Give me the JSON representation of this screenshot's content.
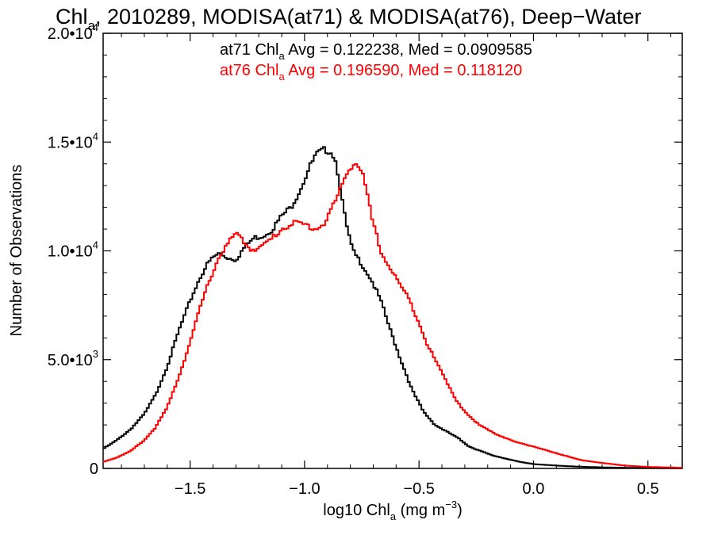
{
  "chart_data": {
    "type": "line",
    "title_prefix": "Chl",
    "title_sub": "a",
    "title_rest": ", 2010289, MODISA(at71) & MODISA(at76), Deep−Water",
    "xlabel_prefix": "log10 Chl",
    "xlabel_sub": "a",
    "xlabel_unit": " (mg m",
    "xlabel_sup": "−3",
    "xlabel_close": ")",
    "ylabel": "Number of Observations",
    "xlim": [
      -1.88,
      0.65
    ],
    "ylim": [
      0,
      20000
    ],
    "x_ticks": [
      -1.5,
      -1.0,
      -0.5,
      0.0,
      0.5
    ],
    "x_tick_labels": [
      "−1.5",
      "−1.0",
      "−0.5",
      "0.0",
      "0.5"
    ],
    "y_ticks": [
      0,
      5000,
      10000,
      15000,
      20000
    ],
    "y_tick_labels": [
      {
        "mant": "0",
        "exp": ""
      },
      {
        "mant": "5.0•10",
        "exp": "3"
      },
      {
        "mant": "1.0•10",
        "exp": "4"
      },
      {
        "mant": "1.5•10",
        "exp": "4"
      },
      {
        "mant": "2.0•10",
        "exp": "4"
      }
    ],
    "grid": false,
    "annotations": [
      {
        "pre": "at71 Chl",
        "sub": "a",
        "post": " Avg = 0.122238, Med = 0.0909585",
        "color": "#000000"
      },
      {
        "pre": "at76 Chl",
        "sub": "a",
        "post": " Avg = 0.196590, Med = 0.118120",
        "color": "#ff0000"
      }
    ],
    "series": [
      {
        "color": "#000000",
        "x": [
          -1.88,
          -1.82,
          -1.76,
          -1.7,
          -1.65,
          -1.6,
          -1.55,
          -1.5,
          -1.46,
          -1.43,
          -1.4,
          -1.37,
          -1.34,
          -1.3,
          -1.26,
          -1.22,
          -1.18,
          -1.14,
          -1.1,
          -1.06,
          -1.02,
          -0.98,
          -0.95,
          -0.92,
          -0.9,
          -0.88,
          -0.86,
          -0.84,
          -0.82,
          -0.79,
          -0.75,
          -0.71,
          -0.67,
          -0.63,
          -0.58,
          -0.53,
          -0.48,
          -0.43,
          -0.38,
          -0.33,
          -0.28,
          -0.23,
          -0.18,
          -0.12,
          -0.06,
          0.0,
          0.1,
          0.2,
          0.3,
          0.4,
          0.5,
          0.65
        ],
        "y": [
          900,
          1300,
          1800,
          2500,
          3400,
          4700,
          6300,
          7700,
          8700,
          9300,
          9700,
          9900,
          9700,
          9600,
          10200,
          10600,
          10700,
          11000,
          11600,
          12000,
          12800,
          13800,
          14400,
          14600,
          14650,
          14550,
          14000,
          12600,
          11300,
          10000,
          9400,
          8700,
          7800,
          6500,
          5000,
          3600,
          2600,
          2000,
          1700,
          1400,
          1000,
          800,
          600,
          450,
          300,
          200,
          130,
          80,
          50,
          30,
          20,
          10
        ]
      },
      {
        "color": "#ff0000",
        "x": [
          -1.88,
          -1.82,
          -1.76,
          -1.7,
          -1.65,
          -1.6,
          -1.55,
          -1.5,
          -1.45,
          -1.41,
          -1.37,
          -1.33,
          -1.3,
          -1.27,
          -1.24,
          -1.2,
          -1.15,
          -1.1,
          -1.05,
          -1.0,
          -0.95,
          -0.91,
          -0.88,
          -0.85,
          -0.82,
          -0.79,
          -0.77,
          -0.75,
          -0.73,
          -0.7,
          -0.66,
          -0.62,
          -0.58,
          -0.54,
          -0.5,
          -0.46,
          -0.42,
          -0.38,
          -0.34,
          -0.3,
          -0.25,
          -0.2,
          -0.15,
          -0.1,
          -0.05,
          0.0,
          0.05,
          0.1,
          0.15,
          0.2,
          0.3,
          0.4,
          0.5,
          0.65
        ],
        "y": [
          300,
          500,
          800,
          1300,
          1900,
          2800,
          4200,
          5800,
          7600,
          8800,
          9800,
          10400,
          10800,
          10500,
          10100,
          10100,
          10500,
          11000,
          11300,
          11200,
          11000,
          11300,
          12000,
          12600,
          13500,
          14000,
          14000,
          13700,
          12700,
          11200,
          9800,
          9100,
          8400,
          7700,
          6700,
          5600,
          4800,
          4000,
          3200,
          2600,
          2100,
          1800,
          1500,
          1300,
          1150,
          1000,
          850,
          700,
          550,
          400,
          250,
          130,
          70,
          30
        ]
      }
    ]
  }
}
